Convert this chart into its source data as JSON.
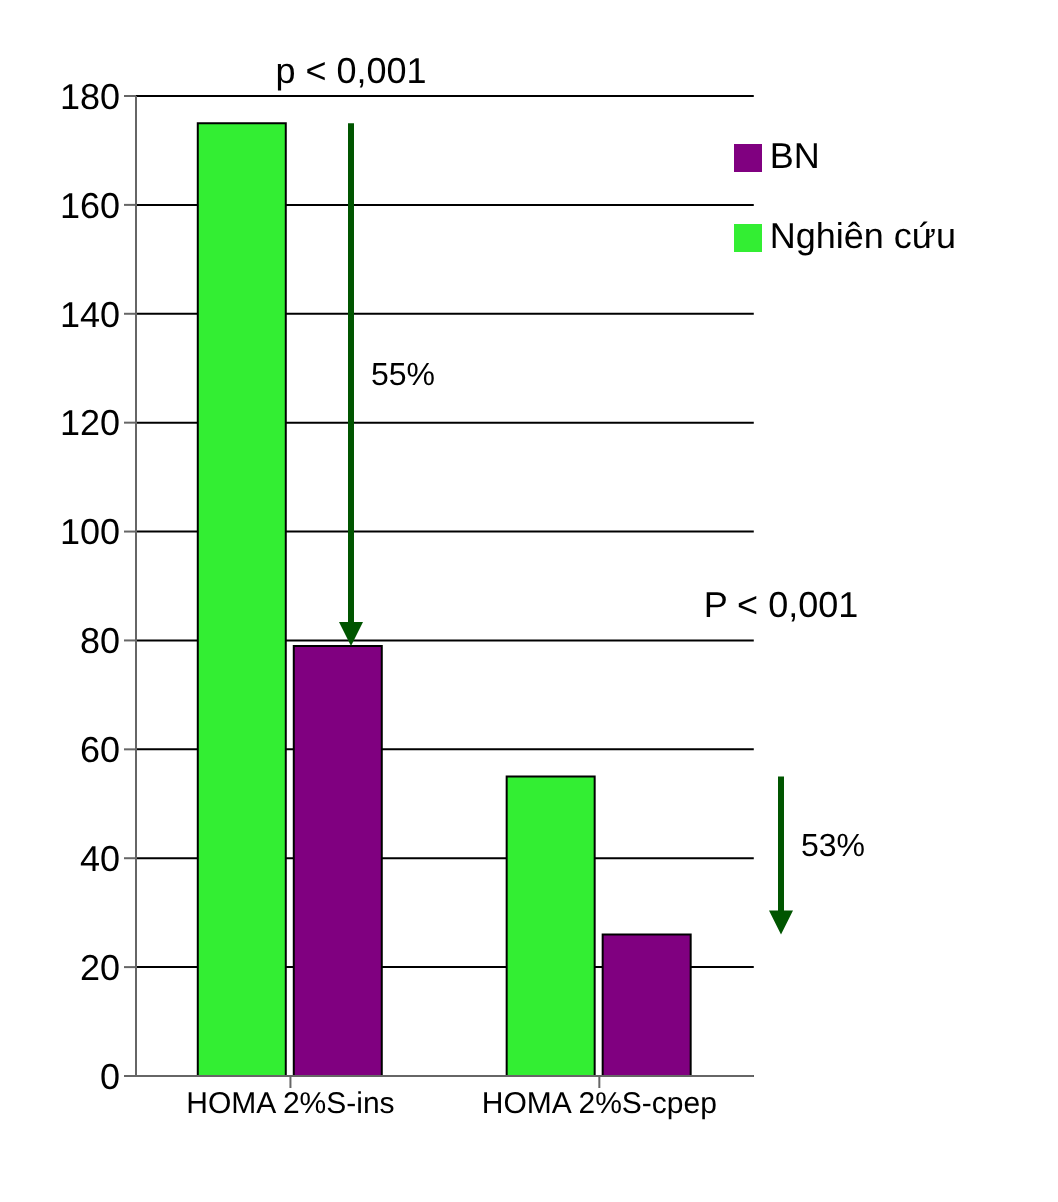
{
  "chart_data": {
    "type": "bar",
    "categories": [
      "HOMA 2%S-ins",
      "HOMA 2%S-cpep"
    ],
    "series": [
      {
        "name": "Nghiên cứu",
        "color": "#33ee33",
        "values": [
          175,
          55
        ]
      },
      {
        "name": "BN",
        "color": "#800080",
        "values": [
          79,
          26
        ]
      }
    ],
    "ylim": [
      0,
      180
    ],
    "yticks": [
      0,
      20,
      40,
      60,
      80,
      100,
      120,
      140,
      160,
      180
    ],
    "grid": "y",
    "legend": "top right",
    "annotations": [
      "p < 0,001",
      "55%",
      "P < 0,001",
      "53%"
    ]
  }
}
